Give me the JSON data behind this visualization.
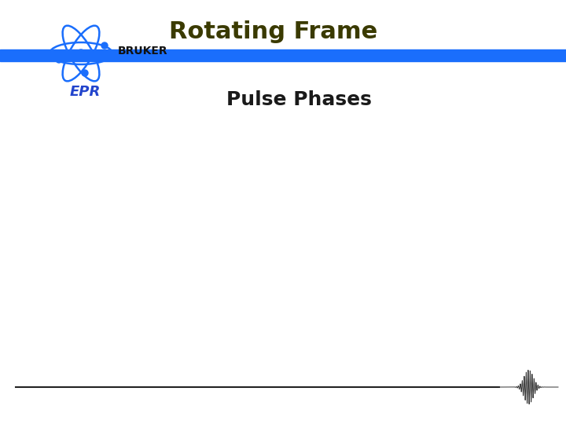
{
  "title": "Rotating Frame",
  "subtitle": "Pulse Phases",
  "title_color": "#3a3a00",
  "subtitle_color": "#1a1a1a",
  "title_fontsize": 22,
  "subtitle_fontsize": 18,
  "title_fontweight": "bold",
  "subtitle_fontweight": "bold",
  "blue_bar_color": "#1a6efc",
  "background_color": "#ffffff",
  "bruker_text": "BRUKER",
  "bruker_color": "#111111",
  "epr_color": "#2244cc",
  "atom_color": "#1a6efc",
  "line_color": "#222222",
  "wave_color": "#333333"
}
